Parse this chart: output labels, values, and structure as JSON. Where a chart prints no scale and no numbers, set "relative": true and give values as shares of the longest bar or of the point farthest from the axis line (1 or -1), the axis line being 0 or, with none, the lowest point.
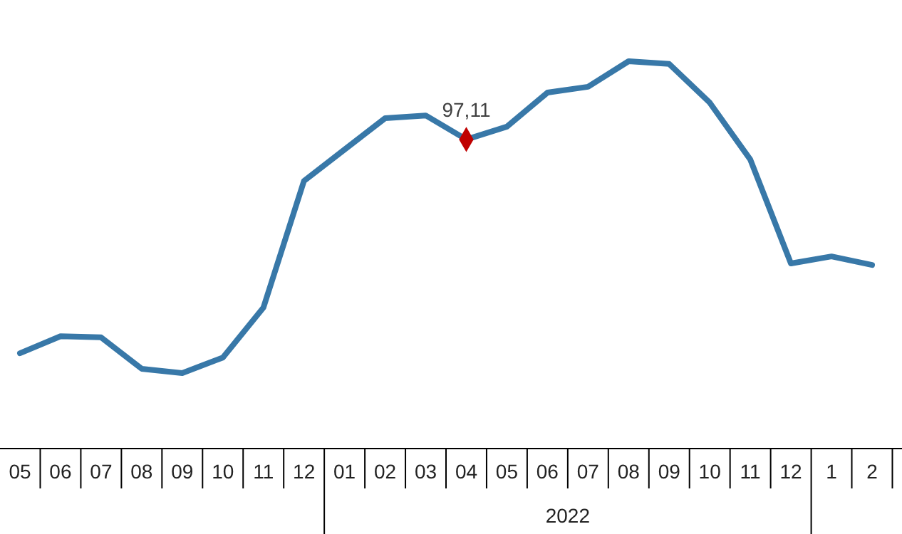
{
  "chart_data": {
    "type": "line",
    "relative": true,
    "categories": [
      "05",
      "06",
      "07",
      "08",
      "09",
      "10",
      "11",
      "12",
      "01",
      "02",
      "03",
      "04",
      "05",
      "06",
      "07",
      "08",
      "09",
      "10",
      "11",
      "12",
      "1",
      "2"
    ],
    "series": [
      {
        "color": "#3878a8",
        "values": [
          0.246,
          0.29,
          0.287,
          0.206,
          0.195,
          0.235,
          0.364,
          0.691,
          0.772,
          0.853,
          0.86,
          0.798,
          0.831,
          0.919,
          0.934,
          1,
          0.993,
          0.893,
          0.746,
          0.478,
          0.496,
          0.474
        ]
      },
      {
        "type": "scatter",
        "marker": "diamond",
        "color": "#c00000",
        "values": [
          null,
          null,
          null,
          null,
          null,
          null,
          null,
          null,
          null,
          null,
          null,
          0.798,
          null,
          null,
          null,
          null,
          null,
          null,
          null,
          null,
          null,
          null
        ]
      }
    ],
    "annotations": [
      {
        "text": "97,11",
        "x": "04",
        "y": 0.798
      },
      "2022"
    ]
  }
}
